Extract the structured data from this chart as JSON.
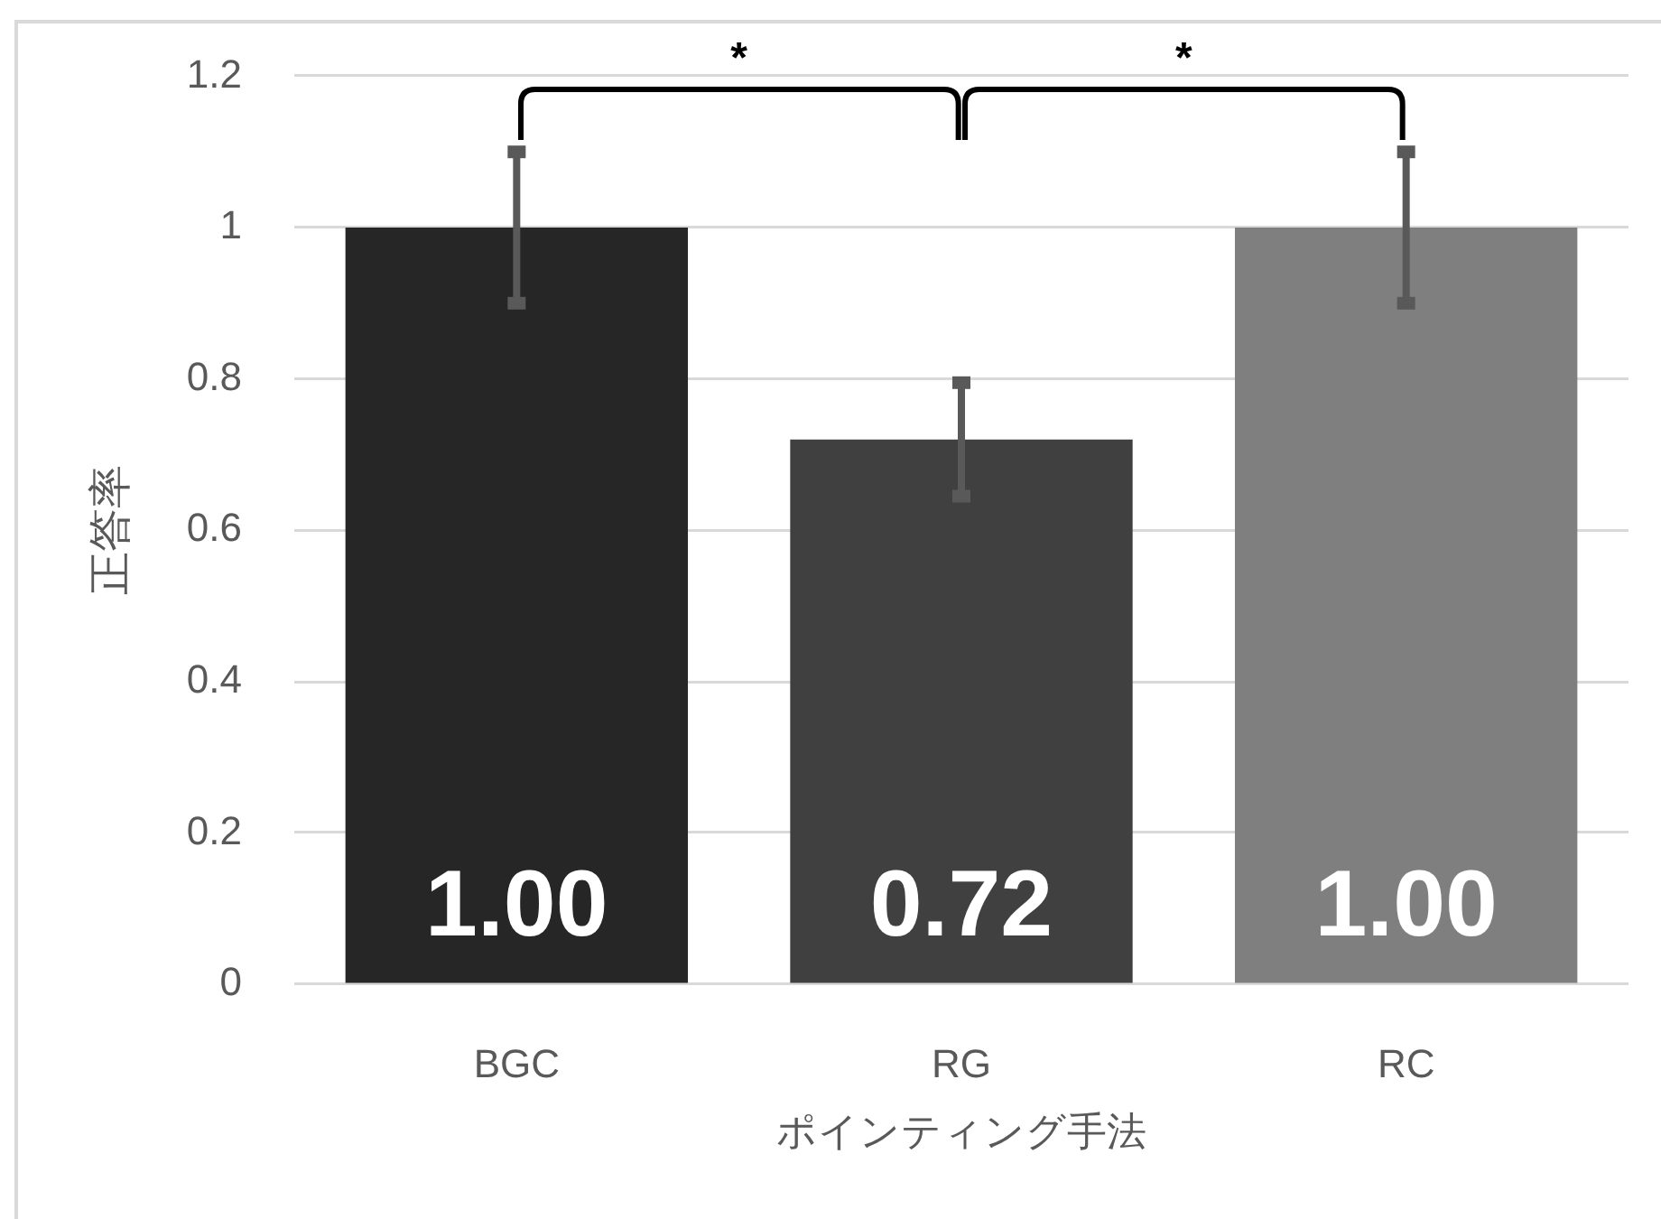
{
  "chart_data": {
    "type": "bar",
    "xlabel": "ポインティング手法",
    "ylabel": "正答率",
    "categories": [
      "BGC",
      "RG",
      "RC"
    ],
    "values": [
      1,
      0.72,
      1
    ],
    "colors": [
      "#262626",
      "#404040",
      "#7f7f7f"
    ],
    "errors": [
      0.1,
      0.075,
      0.1
    ],
    "value_labels": [
      "1.00",
      "0.72",
      "1.00"
    ],
    "ylim": [
      0,
      1.2
    ],
    "yticks": [
      0,
      0.2,
      0.4,
      0.6,
      0.8,
      1,
      1.2
    ],
    "grid": "y",
    "annotations": [
      "*",
      "*"
    ]
  }
}
